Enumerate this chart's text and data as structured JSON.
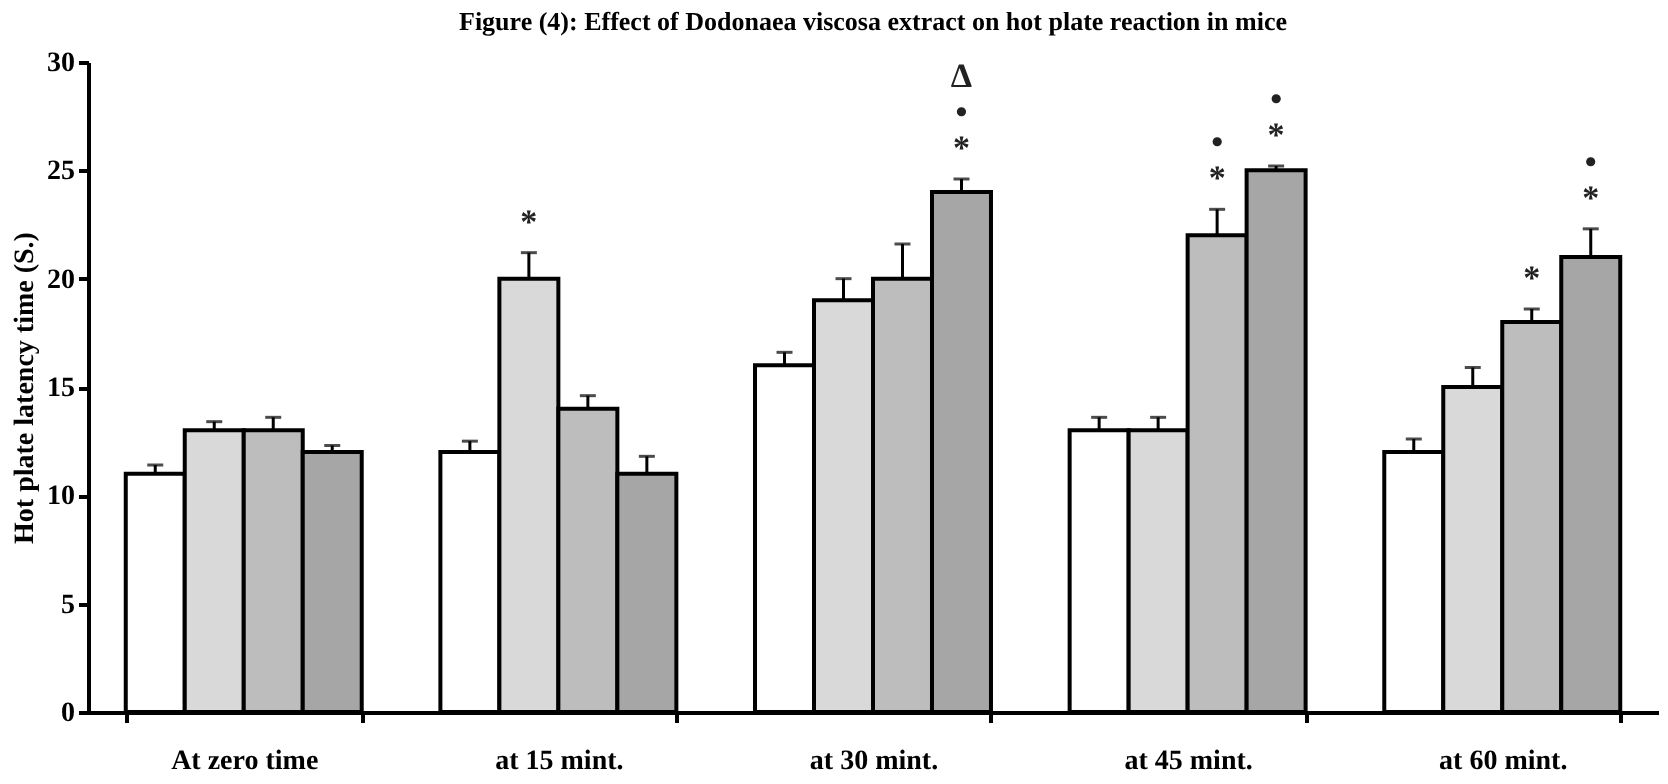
{
  "chart_data": {
    "type": "bar",
    "title": "Figure (4): Effect of Dodonaea viscosa extract on hot plate reaction in mice",
    "ylabel": "Hot plate latency time (S.)",
    "categories": [
      "At zero time",
      "at 15 mint.",
      "at 30 mint.",
      "at 45 mint.",
      "at 60 mint."
    ],
    "series": [
      {
        "color": "#ffffff",
        "values": [
          11,
          12,
          16,
          13,
          12
        ],
        "errors": [
          [
            11,
            11.4
          ],
          [
            12,
            12.5
          ],
          [
            16,
            16.6
          ],
          [
            13,
            13.6
          ],
          [
            12,
            12.6
          ]
        ]
      },
      {
        "color": "#d9d9d9",
        "values": [
          13,
          20,
          19,
          13,
          15
        ],
        "errors": [
          [
            13,
            13.4
          ],
          [
            20,
            21.2
          ],
          [
            19,
            20
          ],
          [
            13,
            13.6
          ],
          [
            15,
            15.9
          ]
        ],
        "value_labels": [
          null,
          "*",
          null,
          null,
          null
        ]
      },
      {
        "color": "#bdbdbd",
        "values": [
          13,
          14,
          20,
          22,
          18
        ],
        "errors": [
          [
            13,
            13.6
          ],
          [
            14,
            14.6
          ],
          [
            20,
            21.6
          ],
          [
            22,
            23.2
          ],
          [
            18,
            18.6
          ]
        ],
        "value_labels": [
          null,
          null,
          null,
          "•\n*",
          "*"
        ]
      },
      {
        "color": "#a6a6a6",
        "values": [
          12,
          11,
          24,
          25,
          21
        ],
        "errors": [
          [
            12,
            12.3
          ],
          [
            11,
            11.8
          ],
          [
            24,
            24.6
          ],
          [
            25,
            25.2
          ],
          [
            21,
            22.3
          ]
        ],
        "value_labels": [
          null,
          null,
          "Δ\n•\n*",
          "•\n*",
          "•\n*"
        ]
      }
    ],
    "ylim": [
      0,
      30
    ],
    "yticks": [
      0,
      5,
      10,
      15,
      20,
      25,
      30
    ],
    "grid": false,
    "legend": false
  }
}
